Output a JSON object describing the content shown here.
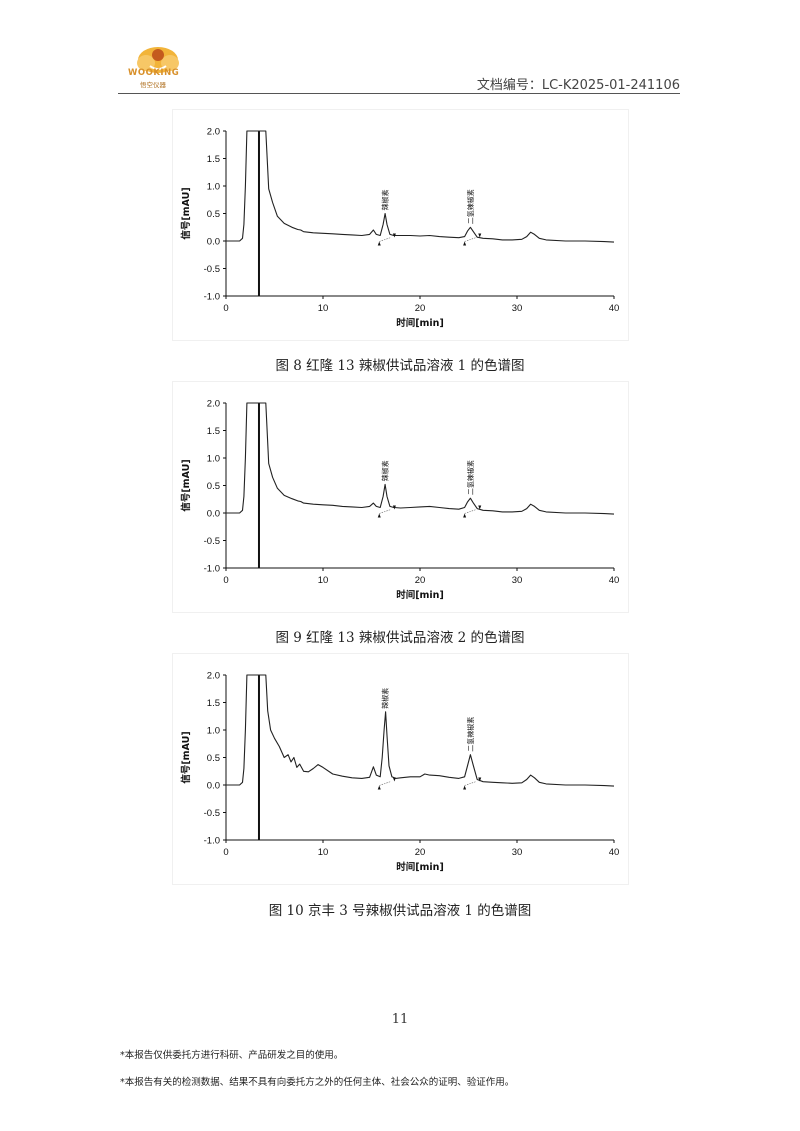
{
  "header": {
    "logo_text": "WOOKING",
    "logo_sub": "悟空仪器",
    "doc_id": "文档编号：LC-K2025-01-241106"
  },
  "captions": [
    "图 8  红隆 13 辣椒供试品溶液 1 的色谱图",
    "图 9  红隆 13 辣椒供试品溶液 2 的色谱图",
    "图 10  京丰 3 号辣椒供试品溶液 1 的色谱图"
  ],
  "page_number": "11",
  "footnotes": [
    "*本报告仅供委托方进行科研、产品研发之目的使用。",
    "*本报告有关的检测数据、结果不具有向委托方之外的任何主体、社会公众的证明、验证作用。"
  ],
  "chart_data": [
    {
      "type": "line",
      "title": "",
      "xlabel": "时间[min]",
      "ylabel": "信号[mAU]",
      "xlim": [
        0,
        40
      ],
      "ylim": [
        -1.0,
        2.0
      ],
      "xticks": [
        "0",
        "10",
        "20",
        "30",
        "40"
      ],
      "yticks": [
        "2.0",
        "1.5",
        "1.0",
        "0.5",
        "0.0",
        "-0.5",
        "-1.0"
      ],
      "annotations": [
        {
          "label": "辣椒素",
          "x": 16.4
        },
        {
          "label": "二氢辣椒素",
          "x": 25.2
        }
      ],
      "series": [
        {
          "x": [
            0.0,
            1.4,
            1.7,
            1.85,
            2.0,
            2.15,
            2.3,
            2.5,
            3.2,
            3.45,
            3.6,
            3.8,
            3.95,
            4.1,
            4.4,
            4.8,
            5.3,
            6.0,
            6.8,
            7.4,
            7.7,
            8.0,
            9.0,
            10.0,
            11.0,
            12.0,
            13.0,
            14.0,
            14.8,
            15.2,
            15.5,
            15.9,
            16.2,
            16.4,
            16.6,
            16.9,
            17.3,
            18.0,
            19.0,
            20.0,
            21.0,
            22.0,
            23.0,
            24.0,
            24.6,
            24.9,
            25.2,
            25.5,
            25.9,
            26.5,
            27.5,
            28.5,
            29.5,
            30.5,
            31.0,
            31.4,
            31.8,
            32.3,
            33.0,
            35.0,
            37.0,
            39.0,
            40.0
          ],
          "values": [
            0.0,
            0.0,
            0.05,
            0.3,
            1.0,
            2.0,
            2.0,
            2.0,
            2.0,
            2.0,
            2.0,
            2.0,
            2.0,
            2.0,
            0.95,
            0.7,
            0.45,
            0.32,
            0.25,
            0.21,
            0.2,
            0.17,
            0.15,
            0.14,
            0.13,
            0.12,
            0.11,
            0.1,
            0.12,
            0.2,
            0.12,
            0.1,
            0.3,
            0.5,
            0.3,
            0.12,
            0.1,
            0.1,
            0.1,
            0.09,
            0.1,
            0.08,
            0.07,
            0.06,
            0.08,
            0.18,
            0.25,
            0.17,
            0.07,
            0.05,
            0.04,
            0.02,
            0.02,
            0.03,
            0.08,
            0.16,
            0.12,
            0.05,
            0.02,
            0.0,
            0.0,
            -0.01,
            -0.02
          ]
        }
      ],
      "vline_x": 3.4
    },
    {
      "type": "line",
      "title": "",
      "xlabel": "时间[min]",
      "ylabel": "信号[mAU]",
      "xlim": [
        0,
        40
      ],
      "ylim": [
        -1.0,
        2.0
      ],
      "xticks": [
        "0",
        "10",
        "20",
        "30",
        "40"
      ],
      "yticks": [
        "2.0",
        "1.5",
        "1.0",
        "0.5",
        "0.0",
        "-0.5",
        "-1.0"
      ],
      "annotations": [
        {
          "label": "辣椒素",
          "x": 16.4
        },
        {
          "label": "二氢辣椒素",
          "x": 25.2
        }
      ],
      "series": [
        {
          "x": [
            0.0,
            1.4,
            1.7,
            1.85,
            2.0,
            2.15,
            2.3,
            2.5,
            3.2,
            3.45,
            3.6,
            3.8,
            3.95,
            4.1,
            4.4,
            4.8,
            5.3,
            6.0,
            6.8,
            7.4,
            7.7,
            8.0,
            9.0,
            10.0,
            11.0,
            12.0,
            13.0,
            14.0,
            14.8,
            15.2,
            15.5,
            15.9,
            16.2,
            16.4,
            16.6,
            16.9,
            17.3,
            18.0,
            19.0,
            20.0,
            21.0,
            22.0,
            23.0,
            24.0,
            24.6,
            24.9,
            25.2,
            25.5,
            25.9,
            26.5,
            27.5,
            28.5,
            29.5,
            30.5,
            31.0,
            31.4,
            31.8,
            32.3,
            33.0,
            35.0,
            37.0,
            39.0,
            40.0
          ],
          "values": [
            0.0,
            0.0,
            0.05,
            0.3,
            1.0,
            2.0,
            2.0,
            2.0,
            2.0,
            2.0,
            2.0,
            2.0,
            2.0,
            2.0,
            0.9,
            0.65,
            0.45,
            0.32,
            0.26,
            0.22,
            0.21,
            0.18,
            0.16,
            0.15,
            0.14,
            0.12,
            0.11,
            0.1,
            0.12,
            0.18,
            0.12,
            0.1,
            0.3,
            0.52,
            0.3,
            0.12,
            0.1,
            0.09,
            0.1,
            0.11,
            0.12,
            0.1,
            0.08,
            0.07,
            0.1,
            0.2,
            0.27,
            0.18,
            0.08,
            0.05,
            0.04,
            0.02,
            0.02,
            0.03,
            0.08,
            0.16,
            0.12,
            0.05,
            0.02,
            0.0,
            0.0,
            -0.01,
            -0.02
          ]
        }
      ],
      "vline_x": 3.4
    },
    {
      "type": "line",
      "title": "",
      "xlabel": "时间[min]",
      "ylabel": "信号[mAU]",
      "xlim": [
        0,
        40
      ],
      "ylim": [
        -1.0,
        2.0
      ],
      "xticks": [
        "0",
        "10",
        "20",
        "30",
        "40"
      ],
      "yticks": [
        "2.0",
        "1.5",
        "1.0",
        "0.5",
        "0.0",
        "-0.5",
        "-1.0"
      ],
      "annotations": [
        {
          "label": "辣椒素",
          "x": 16.4
        },
        {
          "label": "二氢辣椒素",
          "x": 25.2
        }
      ],
      "series": [
        {
          "x": [
            0.0,
            1.4,
            1.7,
            1.85,
            2.0,
            2.15,
            2.3,
            2.5,
            3.2,
            3.45,
            3.6,
            3.8,
            3.95,
            4.1,
            4.3,
            4.6,
            5.0,
            5.5,
            6.0,
            6.4,
            6.7,
            7.0,
            7.3,
            7.6,
            8.0,
            8.5,
            9.0,
            9.5,
            10.0,
            11.0,
            12.0,
            13.0,
            14.0,
            14.8,
            15.2,
            15.5,
            15.9,
            16.1,
            16.3,
            16.45,
            16.6,
            16.8,
            17.1,
            17.5,
            18.0,
            19.0,
            20.0,
            20.5,
            21.0,
            22.0,
            23.0,
            24.0,
            24.6,
            24.9,
            25.2,
            25.5,
            25.9,
            26.5,
            27.5,
            28.5,
            29.5,
            30.5,
            31.0,
            31.4,
            31.8,
            32.3,
            33.0,
            35.0,
            37.0,
            39.0,
            40.0
          ],
          "values": [
            0.0,
            0.0,
            0.05,
            0.3,
            1.0,
            2.0,
            2.0,
            2.0,
            2.0,
            2.0,
            2.0,
            2.0,
            2.0,
            2.0,
            1.35,
            1.0,
            0.85,
            0.7,
            0.5,
            0.55,
            0.42,
            0.5,
            0.32,
            0.38,
            0.25,
            0.24,
            0.3,
            0.37,
            0.32,
            0.2,
            0.16,
            0.13,
            0.12,
            0.14,
            0.33,
            0.18,
            0.15,
            0.5,
            1.0,
            1.33,
            0.9,
            0.35,
            0.15,
            0.12,
            0.13,
            0.15,
            0.15,
            0.2,
            0.18,
            0.17,
            0.14,
            0.12,
            0.15,
            0.35,
            0.55,
            0.35,
            0.1,
            0.06,
            0.05,
            0.04,
            0.03,
            0.04,
            0.1,
            0.18,
            0.13,
            0.05,
            0.02,
            0.0,
            0.0,
            -0.01,
            -0.02
          ]
        }
      ],
      "vline_x": 3.4
    }
  ]
}
